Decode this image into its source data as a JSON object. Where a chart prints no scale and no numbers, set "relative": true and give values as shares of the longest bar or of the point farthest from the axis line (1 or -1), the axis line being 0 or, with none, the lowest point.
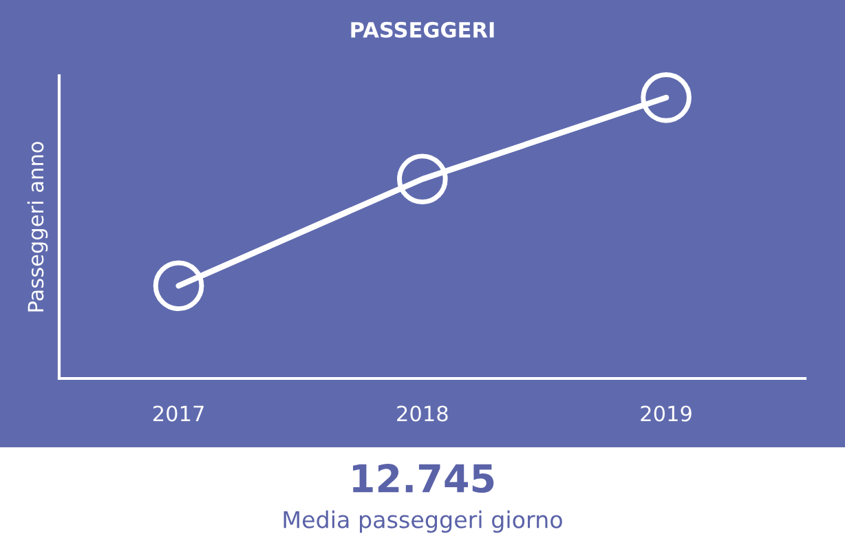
{
  "chart_data": {
    "type": "line",
    "title": "PASSEGGERI",
    "ylabel": "Passeggeri anno",
    "categories": [
      "2017",
      "2018",
      "2019"
    ],
    "series": [
      {
        "color": "#ffffff",
        "values": [
          0.33,
          0.71,
          1
        ]
      }
    ],
    "relative": true,
    "marker": "circle",
    "line_style": "solid",
    "grid": false,
    "legend": false,
    "annotations": [
      "12.745",
      "Media passeggeri giorno"
    ]
  }
}
